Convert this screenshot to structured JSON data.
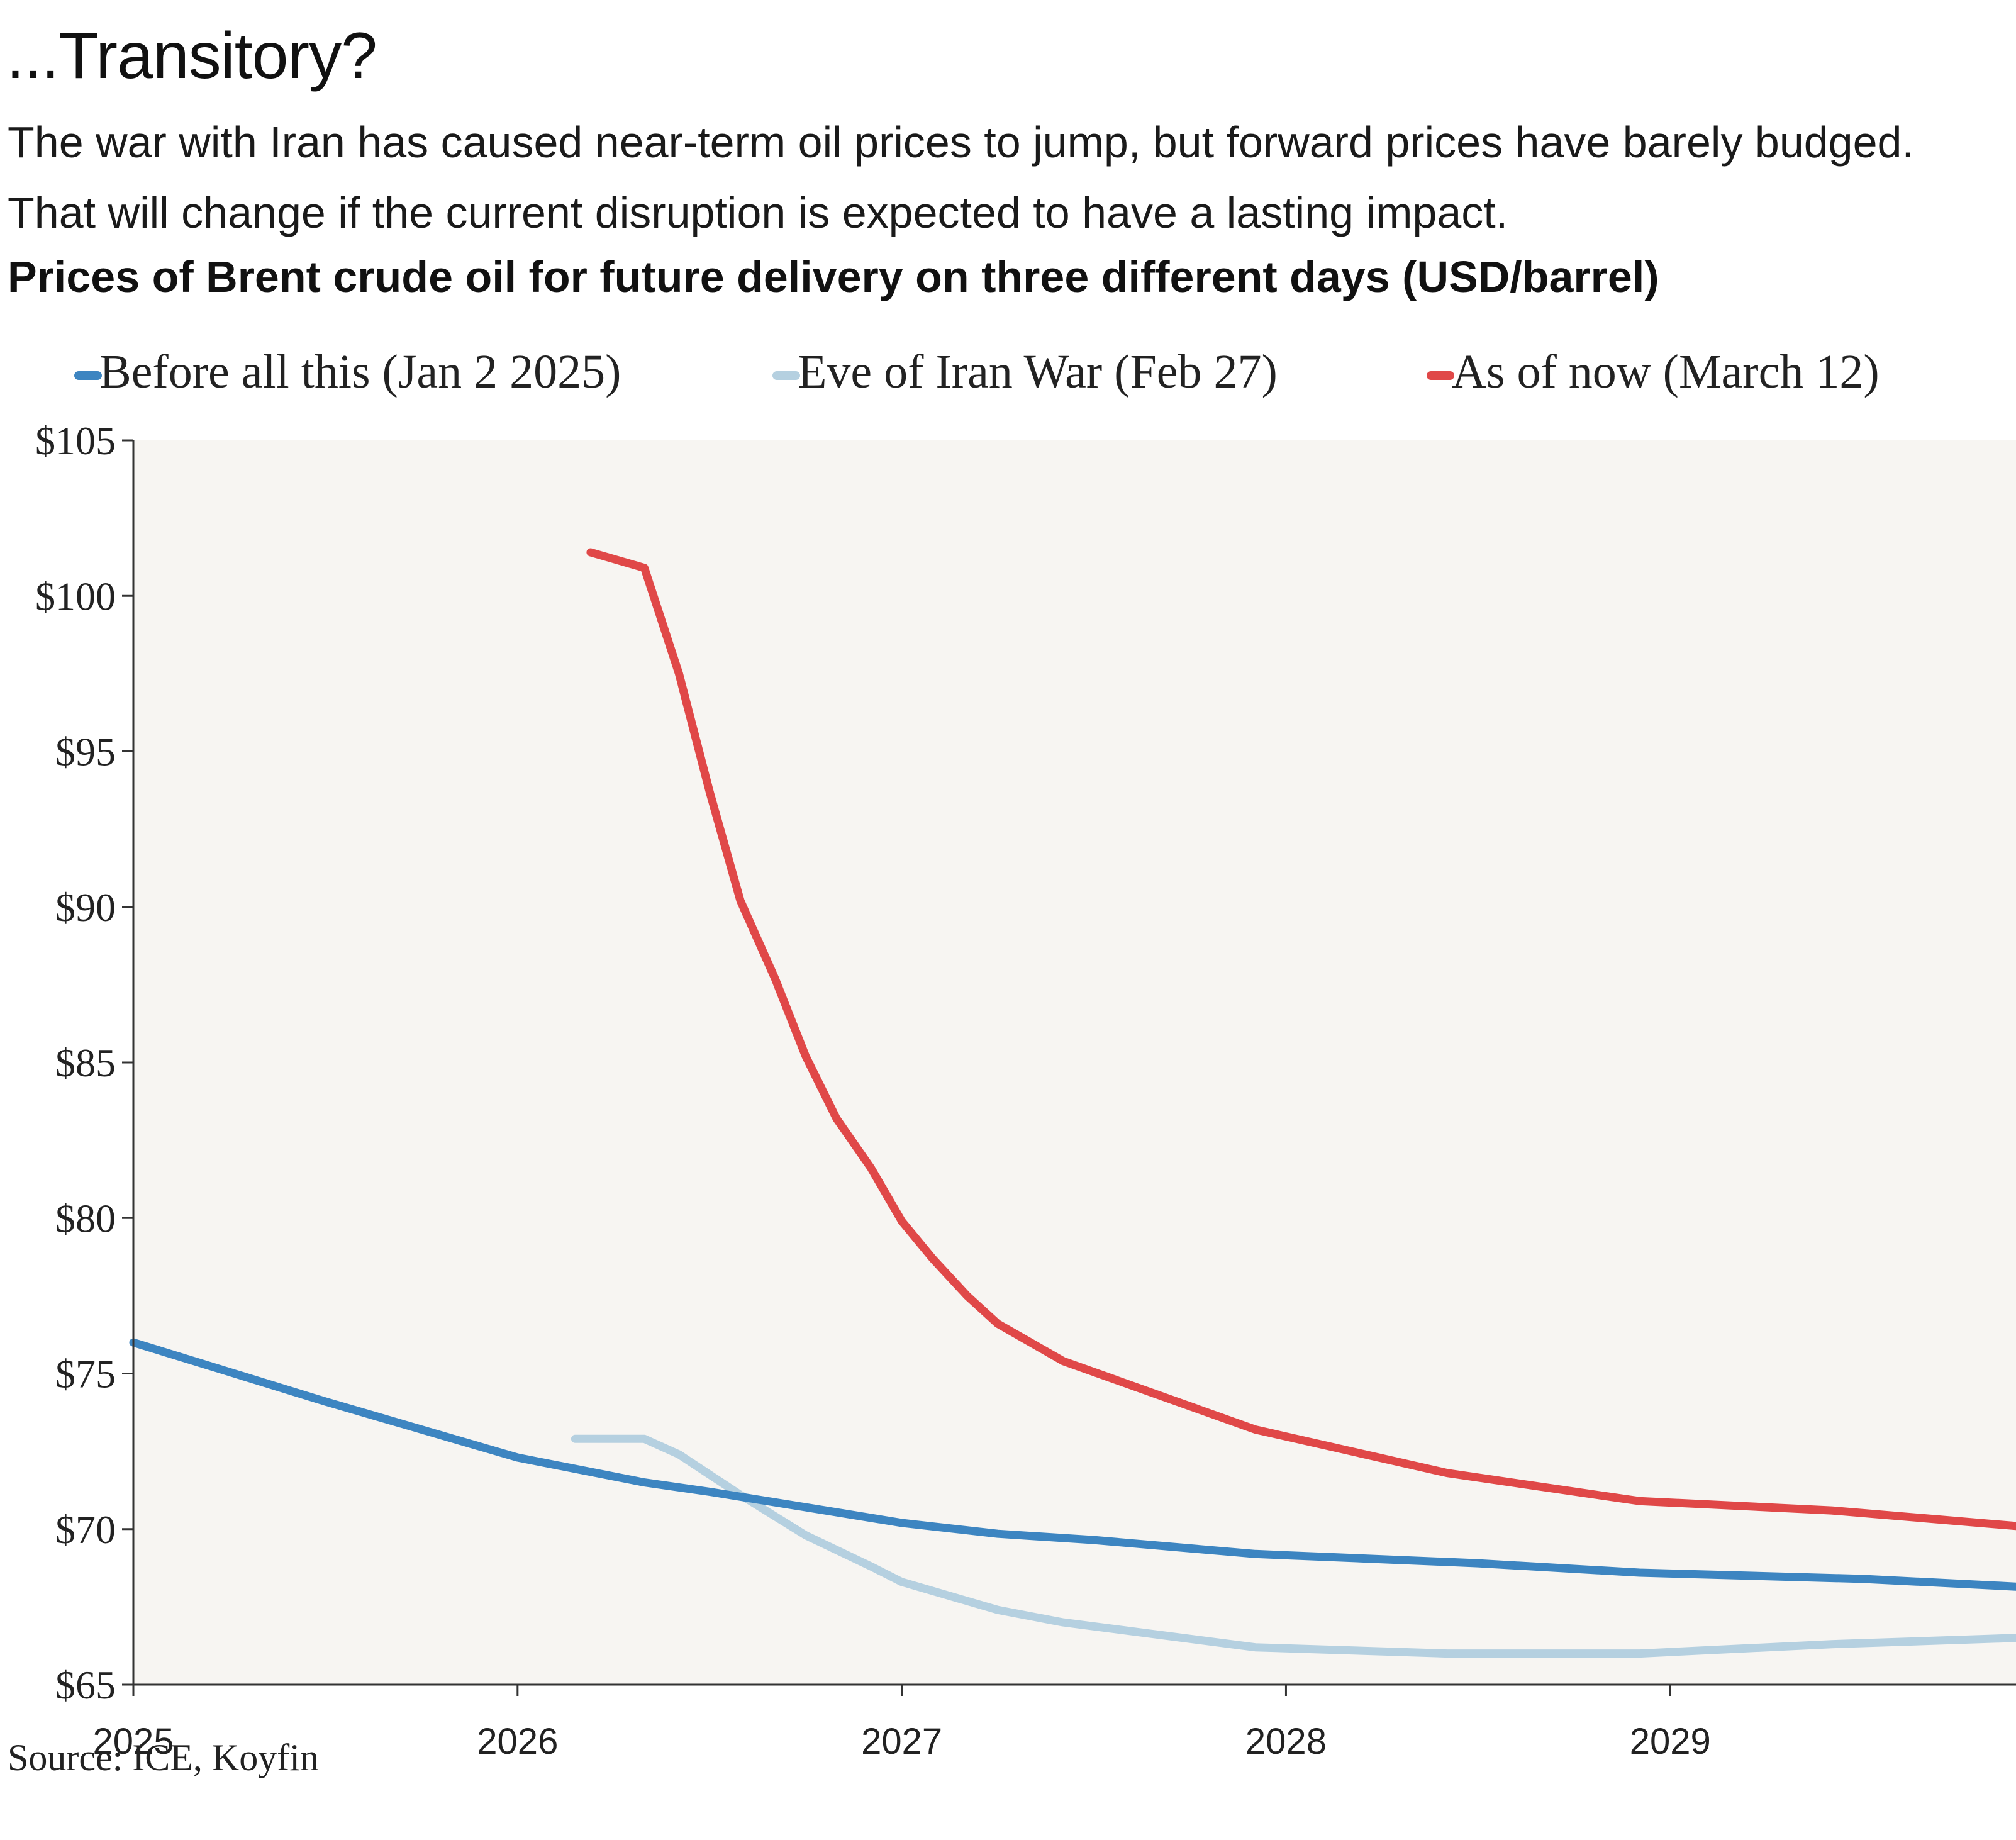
{
  "header": {
    "title": "...Transitory?",
    "subtitle": "The war with Iran has caused near-term oil prices to jump, but forward prices have barely budged. That will change if the current disruption is expected to have a lasting impact."
  },
  "chart_data": {
    "type": "line",
    "title": "Prices of Brent crude oil for future delivery on three different days (USD/barrel)",
    "xlabel": "",
    "ylabel": "",
    "xlim": [
      2025.0,
      2029.9
    ],
    "ylim": [
      65,
      105
    ],
    "x_ticks": [
      2025,
      2026,
      2027,
      2028,
      2029
    ],
    "x_tick_labels": [
      "2025",
      "2026",
      "2027",
      "2028",
      "2029"
    ],
    "y_ticks": [
      65,
      70,
      75,
      80,
      85,
      90,
      95,
      100,
      105
    ],
    "y_tick_labels": [
      "$65",
      "$70",
      "$75",
      "$80",
      "$85",
      "$90",
      "$95",
      "$100",
      "$105"
    ],
    "grid": false,
    "legend_position": "top",
    "series": [
      {
        "name": "Before all this (Jan 2 2025)",
        "color": "#3d85c1",
        "x": [
          2025.0,
          2025.5,
          2026.0,
          2026.33,
          2026.5,
          2026.75,
          2027.0,
          2027.25,
          2027.5,
          2027.92,
          2028.5,
          2028.92,
          2029.5,
          2029.9
        ],
        "y": [
          76.0,
          74.1,
          72.3,
          71.5,
          71.2,
          70.7,
          70.2,
          69.85,
          69.65,
          69.2,
          68.9,
          68.6,
          68.4,
          68.15
        ]
      },
      {
        "name": "Eve of Iran War (Feb 27)",
        "color": "#b5d0e0",
        "x": [
          2026.15,
          2026.33,
          2026.42,
          2026.58,
          2026.75,
          2026.92,
          2027.0,
          2027.25,
          2027.42,
          2027.92,
          2028.42,
          2028.92,
          2029.42,
          2029.9
        ],
        "y": [
          72.9,
          72.9,
          72.4,
          71.1,
          69.8,
          68.8,
          68.3,
          67.4,
          67.0,
          66.2,
          66.0,
          66.0,
          66.3,
          66.5
        ]
      },
      {
        "name": "As of now (March 12)",
        "color": "#e04848",
        "x": [
          2026.19,
          2026.33,
          2026.42,
          2026.5,
          2026.58,
          2026.67,
          2026.75,
          2026.83,
          2026.92,
          2027.0,
          2027.08,
          2027.17,
          2027.25,
          2027.42,
          2027.92,
          2028.42,
          2028.92,
          2029.42,
          2029.9
        ],
        "y": [
          101.4,
          100.9,
          97.5,
          93.7,
          90.2,
          87.7,
          85.2,
          83.2,
          81.6,
          79.9,
          78.7,
          77.5,
          76.6,
          75.4,
          73.2,
          71.8,
          70.9,
          70.6,
          70.1
        ]
      }
    ]
  },
  "footer": {
    "source": "Source: ICE, Koyfin"
  }
}
